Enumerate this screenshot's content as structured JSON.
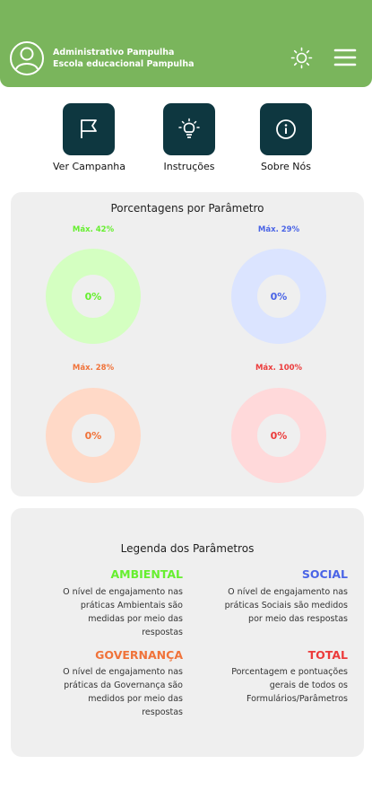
{
  "header": {
    "name": "Administrativo Pampulha",
    "school": "Escola educacional Pampulha"
  },
  "actions": [
    {
      "label": "Ver Campanha",
      "icon": "flag-icon"
    },
    {
      "label": "Instruções",
      "icon": "lightbulb-icon"
    },
    {
      "label": "Sobre Nós",
      "icon": "info-icon"
    }
  ],
  "percentages": {
    "title": "Porcentagens por Parâmetro",
    "items": [
      {
        "max": "Máx. 42%",
        "value": "0%",
        "color": "#66ef2f",
        "bg": "#d4ffc1"
      },
      {
        "max": "Máx. 29%",
        "value": "0%",
        "color": "#4a64e6",
        "bg": "#dbe4ff"
      },
      {
        "max": "Máx. 28%",
        "value": "0%",
        "color": "#f0733a",
        "bg": "#ffd9c7"
      },
      {
        "max": "Máx. 100%",
        "value": "0%",
        "color": "#ec3b3b",
        "bg": "#ffd9da"
      }
    ]
  },
  "legend": {
    "title": "Legenda dos Parâmetros",
    "items": [
      {
        "name": "AMBIENTAL",
        "color": "#66ef2f",
        "desc": [
          "O nível de engajamento nas",
          "práticas Ambientais são",
          "medidas por meio das",
          "respostas"
        ]
      },
      {
        "name": "SOCIAL",
        "color": "#4a64e6",
        "desc": [
          "O nível de engajamento nas",
          "práticas Sociais são medidos",
          "por meio das respostas"
        ]
      },
      {
        "name": "GOVERNANÇA",
        "color": "#f0733a",
        "desc": [
          "O nível de engajamento nas",
          "práticas da Governança são",
          "medidos por meio das",
          "respostas"
        ]
      },
      {
        "name": "TOTAL",
        "color": "#ec3b3b",
        "desc": [
          "Porcentagem e pontuações",
          "gerais de todos os",
          "Formulários/Parâmetros"
        ]
      }
    ]
  }
}
